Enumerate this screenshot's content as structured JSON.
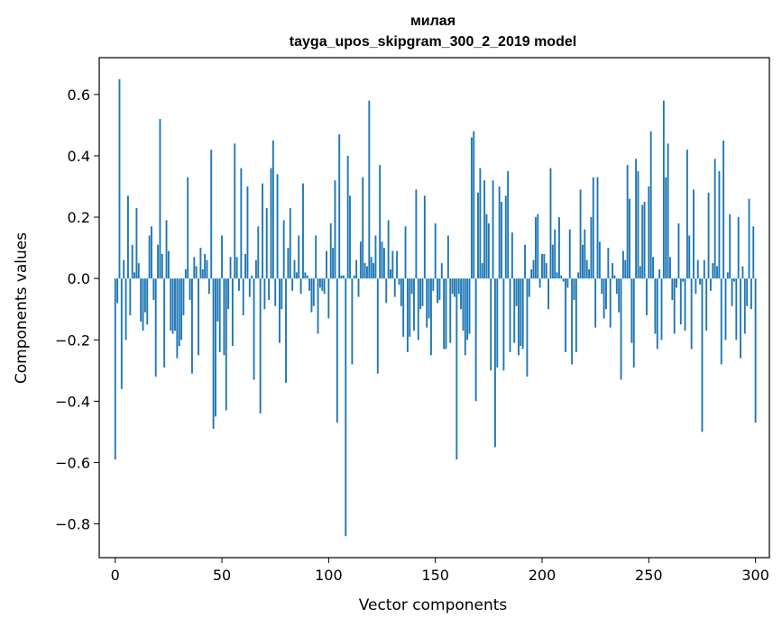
{
  "chart_data": {
    "type": "bar",
    "title": "милая",
    "subtitle": "tayga_upos_skipgram_300_2_2019 model",
    "xlabel": "Vector components",
    "ylabel": "Components values",
    "xlim": [
      -7.5,
      306.5
    ],
    "ylim": [
      -0.91,
      0.72
    ],
    "xticks": [
      0,
      50,
      100,
      150,
      200,
      250,
      300
    ],
    "xtick_labels": [
      "0",
      "50",
      "100",
      "150",
      "200",
      "250",
      "300"
    ],
    "yticks": [
      -0.8,
      -0.6,
      -0.4,
      -0.2,
      0.0,
      0.2,
      0.4,
      0.6
    ],
    "ytick_labels": [
      "−0.8",
      "−0.6",
      "−0.4",
      "−0.2",
      "0.0",
      "0.2",
      "0.4",
      "0.6"
    ],
    "grid": false,
    "bar_color": "#1f77b4",
    "values": [
      -0.59,
      -0.08,
      0.65,
      -0.36,
      0.06,
      -0.2,
      0.27,
      -0.12,
      0.11,
      0.02,
      0.23,
      0.05,
      -0.14,
      -0.17,
      -0.11,
      -0.15,
      0.14,
      0.17,
      -0.07,
      -0.32,
      0.11,
      0.52,
      0.08,
      -0.29,
      0.19,
      0.09,
      -0.17,
      -0.18,
      -0.17,
      -0.26,
      -0.22,
      -0.2,
      -0.12,
      0.03,
      0.33,
      -0.07,
      -0.31,
      0.07,
      0.04,
      -0.25,
      0.1,
      0.03,
      0.08,
      0.06,
      -0.05,
      0.42,
      -0.49,
      -0.45,
      -0.14,
      -0.24,
      0.14,
      -0.25,
      -0.43,
      -0.1,
      0.07,
      -0.22,
      0.44,
      0.07,
      -0.04,
      0.36,
      -0.12,
      0.08,
      0.3,
      -0.06,
      0.01,
      -0.33,
      0.06,
      0.17,
      -0.44,
      0.31,
      -0.1,
      0.23,
      -0.07,
      0.36,
      0.45,
      -0.09,
      0.34,
      -0.21,
      -0.1,
      0.19,
      -0.34,
      0.1,
      0.23,
      -0.04,
      0.06,
      0.02,
      0.14,
      -0.05,
      0.31,
      0.02,
      0.01,
      -0.04,
      -0.11,
      -0.09,
      0.14,
      -0.18,
      -0.03,
      -0.04,
      -0.05,
      0.09,
      -0.13,
      0.18,
      0.1,
      0.32,
      -0.47,
      0.47,
      0.01,
      0.01,
      -0.84,
      0.4,
      0.27,
      -0.28,
      0.01,
      0.06,
      -0.06,
      0.12,
      0.33,
      0.05,
      0.04,
      0.58,
      0.07,
      0.05,
      0.14,
      -0.31,
      0.37,
      0.12,
      0.1,
      -0.08,
      0.19,
      0.03,
      0.09,
      -0.06,
      0.09,
      -0.02,
      -0.09,
      -0.19,
      0.17,
      -0.24,
      -0.19,
      -0.05,
      -0.17,
      0.29,
      -0.2,
      -0.1,
      -0.09,
      0.27,
      -0.16,
      -0.13,
      -0.25,
      -0.04,
      0.18,
      -0.08,
      -0.07,
      0.05,
      -0.23,
      -0.23,
      0.14,
      -0.21,
      -0.05,
      -0.06,
      -0.59,
      -0.05,
      -0.1,
      -0.17,
      -0.25,
      -0.2,
      -0.18,
      0.46,
      0.48,
      -0.4,
      0.28,
      0.36,
      0.05,
      0.32,
      0.21,
      0.18,
      -0.3,
      0.32,
      -0.55,
      -0.29,
      0.3,
      0.25,
      -0.3,
      0.27,
      0.35,
      -0.24,
      0.15,
      -0.21,
      -0.09,
      -0.25,
      -0.22,
      -0.23,
      0.11,
      -0.32,
      -0.06,
      0.03,
      0.06,
      0.2,
      0.21,
      -0.03,
      0.08,
      0.08,
      0.05,
      -0.1,
      0.36,
      0.11,
      0.16,
      0.02,
      0.2,
      0.01,
      -0.01,
      -0.24,
      -0.03,
      0.16,
      -0.28,
      -0.07,
      -0.24,
      0.02,
      0.29,
      0.11,
      0.16,
      0.06,
      0.03,
      0.2,
      0.33,
      -0.16,
      0.33,
      0.12,
      -0.05,
      -0.13,
      -0.1,
      0.1,
      -0.16,
      0.05,
      0.01,
      -0.05,
      -0.11,
      -0.33,
      0.09,
      0.06,
      0.37,
      0.26,
      -0.21,
      -0.29,
      0.39,
      0.35,
      0.04,
      0.24,
      0.25,
      -0.12,
      0.3,
      0.48,
      0.07,
      -0.18,
      -0.23,
      0.03,
      -0.2,
      0.58,
      0.33,
      0.44,
      0.07,
      -0.07,
      -0.18,
      -0.03,
      0.18,
      -0.15,
      -0.01,
      -0.17,
      0.42,
      0.14,
      -0.23,
      0.29,
      -0.05,
      0.06,
      -0.02,
      -0.5,
      0.06,
      -0.17,
      0.28,
      -0.04,
      0.05,
      0.39,
      0.04,
      0.35,
      -0.28,
      0.45,
      -0.2,
      0.02,
      0.21,
      -0.09,
      -0.01,
      -0.2,
      0.2,
      -0.26,
      0.04,
      -0.18,
      -0.09,
      0.26,
      -0.1,
      0.17,
      -0.47
    ]
  }
}
